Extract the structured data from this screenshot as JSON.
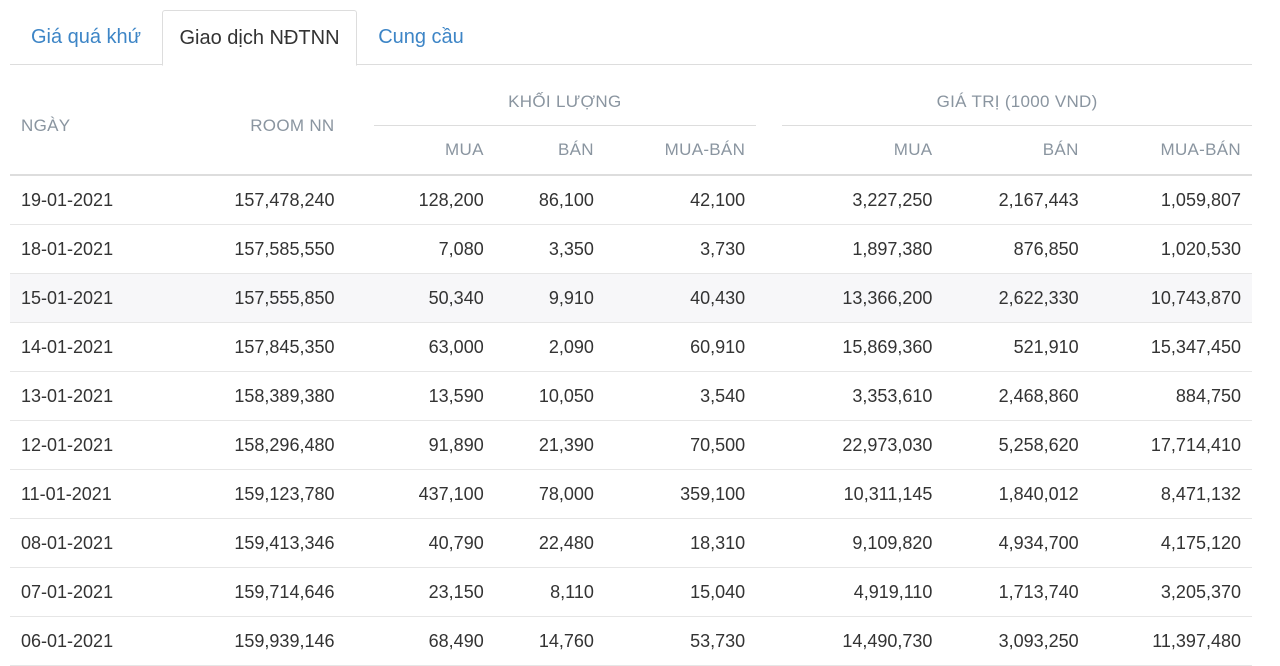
{
  "tabs": [
    {
      "label": "Giá quá khứ",
      "active": false
    },
    {
      "label": "Giao dịch NĐTNN",
      "active": true
    },
    {
      "label": "Cung cầu",
      "active": false
    }
  ],
  "table": {
    "headers": {
      "date": "NGÀY",
      "room": "ROOM NN",
      "volume_group": "KHỐI LƯỢNG",
      "value_group": "GIÁ TRỊ (1000 VND)",
      "buy": "MUA",
      "sell": "BÁN",
      "net": "MUA-BÁN"
    },
    "rows": [
      {
        "date": "19-01-2021",
        "room": "157,478,240",
        "vol_buy": "128,200",
        "vol_sell": "86,100",
        "vol_net": "42,100",
        "val_buy": "3,227,250",
        "val_sell": "2,167,443",
        "val_net": "1,059,807"
      },
      {
        "date": "18-01-2021",
        "room": "157,585,550",
        "vol_buy": "7,080",
        "vol_sell": "3,350",
        "vol_net": "3,730",
        "val_buy": "1,897,380",
        "val_sell": "876,850",
        "val_net": "1,020,530"
      },
      {
        "date": "15-01-2021",
        "room": "157,555,850",
        "vol_buy": "50,340",
        "vol_sell": "9,910",
        "vol_net": "40,430",
        "val_buy": "13,366,200",
        "val_sell": "2,622,330",
        "val_net": "10,743,870"
      },
      {
        "date": "14-01-2021",
        "room": "157,845,350",
        "vol_buy": "63,000",
        "vol_sell": "2,090",
        "vol_net": "60,910",
        "val_buy": "15,869,360",
        "val_sell": "521,910",
        "val_net": "15,347,450"
      },
      {
        "date": "13-01-2021",
        "room": "158,389,380",
        "vol_buy": "13,590",
        "vol_sell": "10,050",
        "vol_net": "3,540",
        "val_buy": "3,353,610",
        "val_sell": "2,468,860",
        "val_net": "884,750"
      },
      {
        "date": "12-01-2021",
        "room": "158,296,480",
        "vol_buy": "91,890",
        "vol_sell": "21,390",
        "vol_net": "70,500",
        "val_buy": "22,973,030",
        "val_sell": "5,258,620",
        "val_net": "17,714,410"
      },
      {
        "date": "11-01-2021",
        "room": "159,123,780",
        "vol_buy": "437,100",
        "vol_sell": "78,000",
        "vol_net": "359,100",
        "val_buy": "10,311,145",
        "val_sell": "1,840,012",
        "val_net": "8,471,132"
      },
      {
        "date": "08-01-2021",
        "room": "159,413,346",
        "vol_buy": "40,790",
        "vol_sell": "22,480",
        "vol_net": "18,310",
        "val_buy": "9,109,820",
        "val_sell": "4,934,700",
        "val_net": "4,175,120"
      },
      {
        "date": "07-01-2021",
        "room": "159,714,646",
        "vol_buy": "23,150",
        "vol_sell": "8,110",
        "vol_net": "15,040",
        "val_buy": "4,919,110",
        "val_sell": "1,713,740",
        "val_net": "3,205,370"
      },
      {
        "date": "06-01-2021",
        "room": "159,939,146",
        "vol_buy": "68,490",
        "vol_sell": "14,760",
        "vol_net": "53,730",
        "val_buy": "14,490,730",
        "val_sell": "3,093,250",
        "val_net": "11,397,480"
      }
    ]
  }
}
